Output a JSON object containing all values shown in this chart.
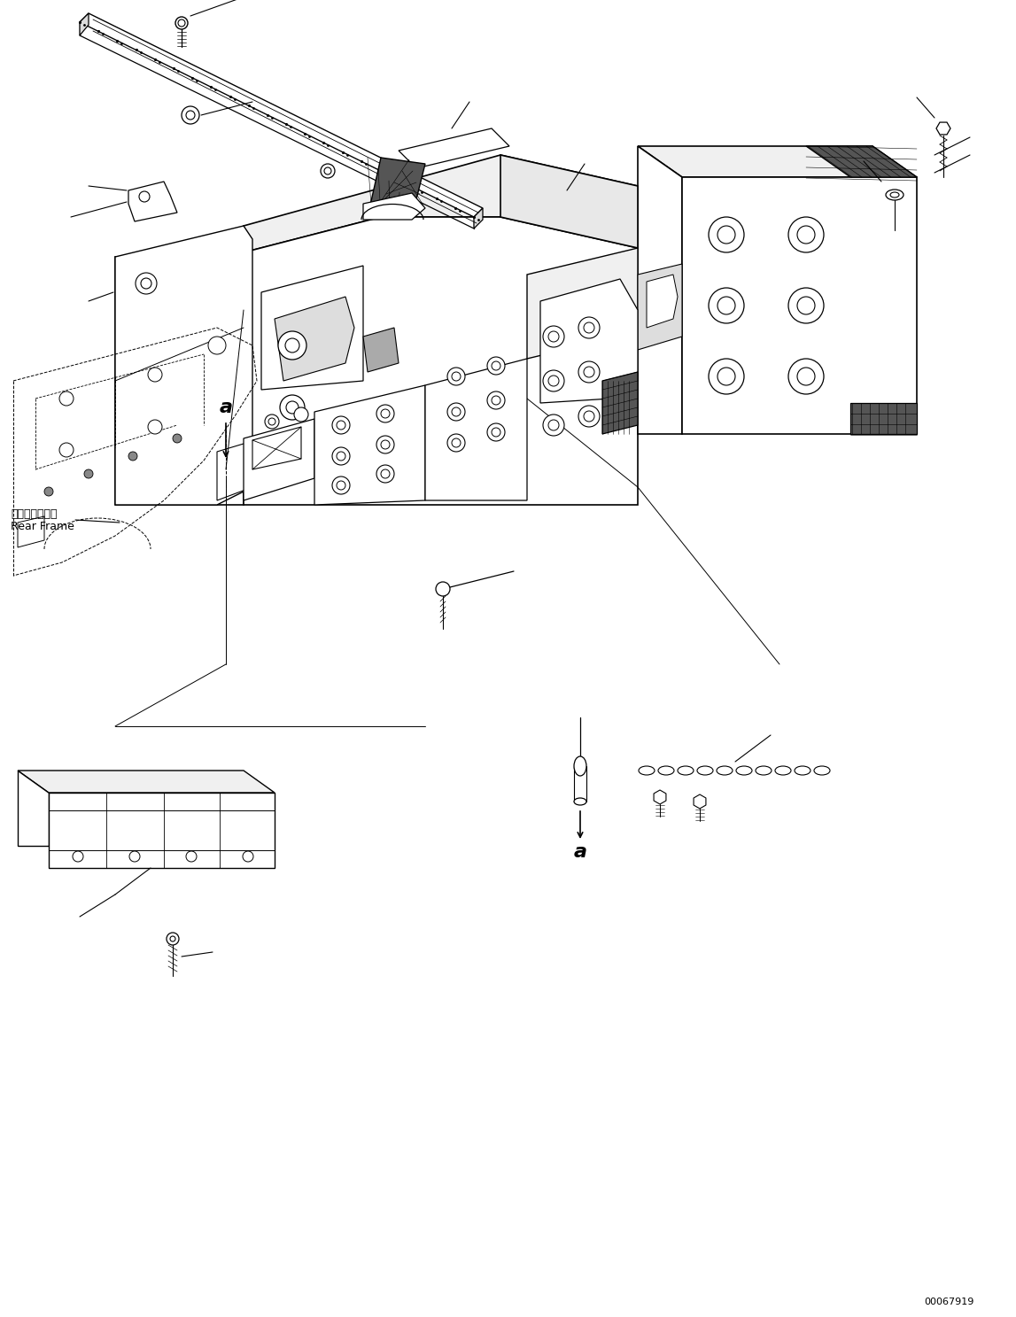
{
  "fig_width": 11.47,
  "fig_height": 14.87,
  "dpi": 100,
  "bg_color": "#ffffff",
  "lc": "#000000",
  "part_number": "00067919",
  "label_a": "a",
  "label_rear_frame_jp": "リヤーフレーム",
  "label_rear_frame_en": "Rear Frame"
}
